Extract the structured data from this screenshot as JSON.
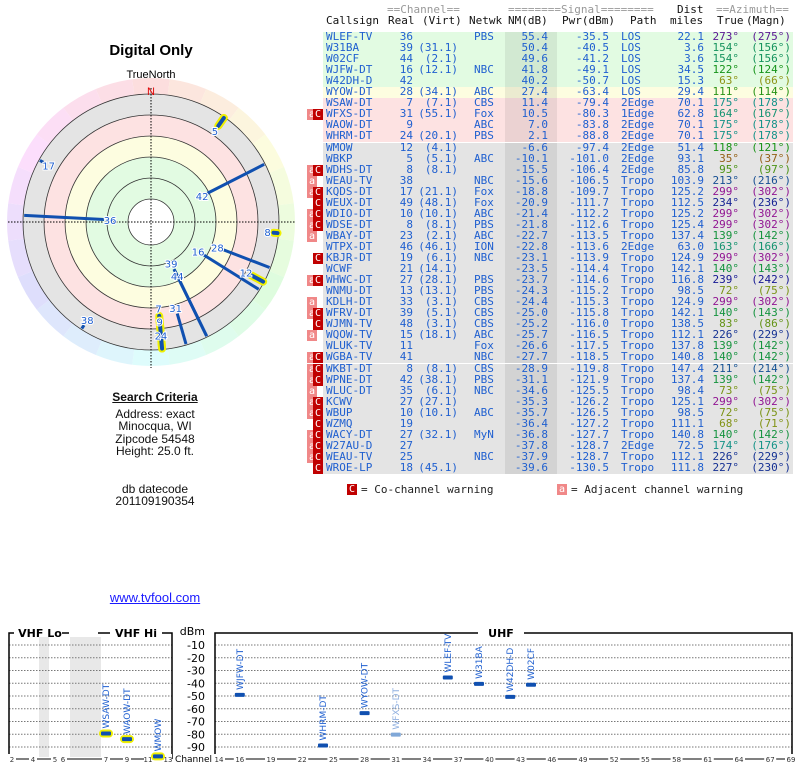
{
  "polar": {
    "title": "Digital Only",
    "north_ref": "TrueNorth",
    "north_label": "N"
  },
  "search_criteria": {
    "heading": "Search Criteria",
    "address": "Address: exact",
    "city": "Minocqua, WI",
    "zipcode": "Zipcode 54548",
    "height": "Height: 25.0 ft.",
    "db_label": "db datecode",
    "db_value": "201109190354"
  },
  "link": "www.tvfool.com",
  "table": {
    "group_headers": {
      "channel": "==Channel==",
      "signal": "========Signal========",
      "dist": "Dist",
      "azimuth": "==Azimuth=="
    },
    "columns": {
      "callsign": "Callsign",
      "real": "Real",
      "virt": "(Virt)",
      "netwk": "Netwk",
      "nm": "NM(dB)",
      "pwr": "Pwr(dBm)",
      "path": "Path",
      "miles": "miles",
      "true": "True",
      "magn": "(Magn)"
    },
    "rows": [
      {
        "call": "WLEF-TV",
        "real": "36",
        "virt": "",
        "net": "PBS",
        "nm": "55.4",
        "pwr": "-35.5",
        "path": "LOS",
        "dist": "22.1",
        "az_true": "273°",
        "az_magn": "(275°)",
        "flags": "",
        "zone": "green"
      },
      {
        "call": "W31BA",
        "real": "39",
        "virt": "(31.1)",
        "net": "",
        "nm": "50.4",
        "pwr": "-40.5",
        "path": "LOS",
        "dist": "3.6",
        "az_true": "154°",
        "az_magn": "(156°)",
        "flags": "",
        "zone": "green"
      },
      {
        "call": "W02CF",
        "real": "44",
        "virt": "(2.1)",
        "net": "",
        "nm": "49.6",
        "pwr": "-41.2",
        "path": "LOS",
        "dist": "3.6",
        "az_true": "154°",
        "az_magn": "(156°)",
        "flags": "",
        "zone": "green"
      },
      {
        "call": "WJFW-DT",
        "real": "16",
        "virt": "(12.1)",
        "net": "NBC",
        "nm": "41.8",
        "pwr": "-49.1",
        "path": "LOS",
        "dist": "34.5",
        "az_true": "122°",
        "az_magn": "(124°)",
        "flags": "",
        "zone": "green"
      },
      {
        "call": "W42DH-D",
        "real": "42",
        "virt": "",
        "net": "",
        "nm": "40.2",
        "pwr": "-50.7",
        "path": "LOS",
        "dist": "15.3",
        "az_true": "63°",
        "az_magn": "(66°)",
        "flags": "",
        "zone": "green"
      },
      {
        "call": "WYOW-DT",
        "real": "28",
        "virt": "(34.1)",
        "net": "ABC",
        "nm": "27.4",
        "pwr": "-63.4",
        "path": "LOS",
        "dist": "29.4",
        "az_true": "111°",
        "az_magn": "(114°)",
        "flags": "",
        "zone": "yellow"
      },
      {
        "call": "WSAW-DT",
        "real": "7",
        "virt": "(7.1)",
        "net": "CBS",
        "nm": "11.4",
        "pwr": "-79.4",
        "path": "2Edge",
        "dist": "70.1",
        "az_true": "175°",
        "az_magn": "(178°)",
        "flags": "",
        "zone": "pink"
      },
      {
        "call": "WFXS-DT",
        "real": "31",
        "virt": "(55.1)",
        "net": "Fox",
        "nm": "10.5",
        "pwr": "-80.3",
        "path": "1Edge",
        "dist": "62.8",
        "az_true": "164°",
        "az_magn": "(167°)",
        "flags": "aC",
        "zone": "pink"
      },
      {
        "call": "WAOW-DT",
        "real": "9",
        "virt": "",
        "net": "ABC",
        "nm": "7.0",
        "pwr": "-83.8",
        "path": "2Edge",
        "dist": "70.1",
        "az_true": "175°",
        "az_magn": "(178°)",
        "flags": "",
        "zone": "pink"
      },
      {
        "call": "WHRM-DT",
        "real": "24",
        "virt": "(20.1)",
        "net": "PBS",
        "nm": "2.1",
        "pwr": "-88.8",
        "path": "2Edge",
        "dist": "70.1",
        "az_true": "175°",
        "az_magn": "(178°)",
        "flags": "",
        "zone": "pink"
      },
      {
        "call": "WMOW",
        "real": "12",
        "virt": "(4.1)",
        "net": "",
        "nm": "-6.6",
        "pwr": "-97.4",
        "path": "2Edge",
        "dist": "51.4",
        "az_true": "118°",
        "az_magn": "(121°)",
        "flags": "",
        "zone": "gray"
      },
      {
        "call": "WBKP",
        "real": "5",
        "virt": "(5.1)",
        "net": "ABC",
        "nm": "-10.1",
        "pwr": "-101.0",
        "path": "2Edge",
        "dist": "93.1",
        "az_true": "35°",
        "az_magn": "(37°)",
        "flags": "",
        "zone": "gray"
      },
      {
        "call": "WDHS-DT",
        "real": "8",
        "virt": "(8.1)",
        "net": "",
        "nm": "-15.5",
        "pwr": "-106.4",
        "path": "2Edge",
        "dist": "85.8",
        "az_true": "95°",
        "az_magn": "(97°)",
        "flags": "aC",
        "zone": "gray"
      },
      {
        "call": "WEAU-TV",
        "real": "38",
        "virt": "",
        "net": "NBC",
        "nm": "-15.6",
        "pwr": "-106.5",
        "path": "Tropo",
        "dist": "103.9",
        "az_true": "213°",
        "az_magn": "(216°)",
        "flags": "a",
        "zone": "gray"
      },
      {
        "call": "KQDS-DT",
        "real": "17",
        "virt": "(21.1)",
        "net": "Fox",
        "nm": "-18.8",
        "pwr": "-109.7",
        "path": "Tropo",
        "dist": "125.2",
        "az_true": "299°",
        "az_magn": "(302°)",
        "flags": "aC",
        "zone": "gray"
      },
      {
        "call": "WEUX-DT",
        "real": "49",
        "virt": "(48.1)",
        "net": "Fox",
        "nm": "-20.9",
        "pwr": "-111.7",
        "path": "Tropo",
        "dist": "112.5",
        "az_true": "234°",
        "az_magn": "(236°)",
        "flags": "C",
        "zone": "gray"
      },
      {
        "call": "WDIO-DT",
        "real": "10",
        "virt": "(10.1)",
        "net": "ABC",
        "nm": "-21.4",
        "pwr": "-112.2",
        "path": "Tropo",
        "dist": "125.2",
        "az_true": "299°",
        "az_magn": "(302°)",
        "flags": "aC",
        "zone": "gray"
      },
      {
        "call": "WDSE-DT",
        "real": "8",
        "virt": "(8.1)",
        "net": "PBS",
        "nm": "-21.8",
        "pwr": "-112.6",
        "path": "Tropo",
        "dist": "125.4",
        "az_true": "299°",
        "az_magn": "(302°)",
        "flags": "aC",
        "zone": "gray"
      },
      {
        "call": "WBAY-DT",
        "real": "23",
        "virt": "(2.1)",
        "net": "ABC",
        "nm": "-22.7",
        "pwr": "-113.5",
        "path": "Tropo",
        "dist": "137.4",
        "az_true": "139°",
        "az_magn": "(142°)",
        "flags": "a",
        "zone": "gray"
      },
      {
        "call": "WTPX-DT",
        "real": "46",
        "virt": "(46.1)",
        "net": "ION",
        "nm": "-22.8",
        "pwr": "-113.6",
        "path": "2Edge",
        "dist": "63.0",
        "az_true": "163°",
        "az_magn": "(166°)",
        "flags": "",
        "zone": "gray"
      },
      {
        "call": "KBJR-DT",
        "real": "19",
        "virt": "(6.1)",
        "net": "NBC",
        "nm": "-23.1",
        "pwr": "-113.9",
        "path": "Tropo",
        "dist": "124.9",
        "az_true": "299°",
        "az_magn": "(302°)",
        "flags": "C",
        "zone": "gray"
      },
      {
        "call": "WCWF",
        "real": "21",
        "virt": "(14.1)",
        "net": "",
        "nm": "-23.5",
        "pwr": "-114.4",
        "path": "Tropo",
        "dist": "142.1",
        "az_true": "140°",
        "az_magn": "(143°)",
        "flags": "",
        "zone": "gray"
      },
      {
        "call": "WHWC-DT",
        "real": "27",
        "virt": "(28.1)",
        "net": "PBS",
        "nm": "-23.7",
        "pwr": "-114.6",
        "path": "Tropo",
        "dist": "116.8",
        "az_true": "239°",
        "az_magn": "(242°)",
        "flags": "aC",
        "zone": "gray"
      },
      {
        "call": "WNMU-DT",
        "real": "13",
        "virt": "(13.1)",
        "net": "PBS",
        "nm": "-24.3",
        "pwr": "-115.2",
        "path": "Tropo",
        "dist": "98.5",
        "az_true": "72°",
        "az_magn": "(75°)",
        "flags": "",
        "zone": "gray"
      },
      {
        "call": "KDLH-DT",
        "real": "33",
        "virt": "(3.1)",
        "net": "CBS",
        "nm": "-24.4",
        "pwr": "-115.3",
        "path": "Tropo",
        "dist": "124.9",
        "az_true": "299°",
        "az_magn": "(302°)",
        "flags": "a",
        "zone": "gray"
      },
      {
        "call": "WFRV-DT",
        "real": "39",
        "virt": "(5.1)",
        "net": "CBS",
        "nm": "-25.0",
        "pwr": "-115.8",
        "path": "Tropo",
        "dist": "142.1",
        "az_true": "140°",
        "az_magn": "(143°)",
        "flags": "aC",
        "zone": "gray"
      },
      {
        "call": "WJMN-TV",
        "real": "48",
        "virt": "(3.1)",
        "net": "CBS",
        "nm": "-25.2",
        "pwr": "-116.0",
        "path": "Tropo",
        "dist": "138.5",
        "az_true": "83°",
        "az_magn": "(86°)",
        "flags": "C",
        "zone": "gray"
      },
      {
        "call": "WQOW-TV",
        "real": "15",
        "virt": "(18.1)",
        "net": "ABC",
        "nm": "-25.7",
        "pwr": "-116.5",
        "path": "Tropo",
        "dist": "112.1",
        "az_true": "226°",
        "az_magn": "(229°)",
        "flags": "a",
        "zone": "gray"
      },
      {
        "call": "WLUK-TV",
        "real": "11",
        "virt": "",
        "net": "Fox",
        "nm": "-26.6",
        "pwr": "-117.5",
        "path": "Tropo",
        "dist": "137.8",
        "az_true": "139°",
        "az_magn": "(142°)",
        "flags": "",
        "zone": "gray"
      },
      {
        "call": "WGBA-TV",
        "real": "41",
        "virt": "",
        "net": "NBC",
        "nm": "-27.7",
        "pwr": "-118.5",
        "path": "Tropo",
        "dist": "140.8",
        "az_true": "140°",
        "az_magn": "(142°)",
        "flags": "aC",
        "zone": "gray"
      },
      {
        "call": "WKBT-DT",
        "real": "8",
        "virt": "(8.1)",
        "net": "CBS",
        "nm": "-28.9",
        "pwr": "-119.8",
        "path": "Tropo",
        "dist": "147.4",
        "az_true": "211°",
        "az_magn": "(214°)",
        "flags": "aC",
        "zone": "gray"
      },
      {
        "call": "WPNE-DT",
        "real": "42",
        "virt": "(38.1)",
        "net": "PBS",
        "nm": "-31.1",
        "pwr": "-121.9",
        "path": "Tropo",
        "dist": "137.4",
        "az_true": "139°",
        "az_magn": "(142°)",
        "flags": "aC",
        "zone": "gray"
      },
      {
        "call": "WLUC-DT",
        "real": "35",
        "virt": "(6.1)",
        "net": "NBC",
        "nm": "-34.6",
        "pwr": "-125.5",
        "path": "Tropo",
        "dist": "98.4",
        "az_true": "73°",
        "az_magn": "(75°)",
        "flags": "a",
        "zone": "gray"
      },
      {
        "call": "KCWV",
        "real": "27",
        "virt": "(27.1)",
        "net": "",
        "nm": "-35.3",
        "pwr": "-126.2",
        "path": "Tropo",
        "dist": "125.1",
        "az_true": "299°",
        "az_magn": "(302°)",
        "flags": "aC",
        "zone": "gray"
      },
      {
        "call": "WBUP",
        "real": "10",
        "virt": "(10.1)",
        "net": "ABC",
        "nm": "-35.7",
        "pwr": "-126.5",
        "path": "Tropo",
        "dist": "98.5",
        "az_true": "72°",
        "az_magn": "(75°)",
        "flags": "aC",
        "zone": "gray"
      },
      {
        "call": "WZMQ",
        "real": "19",
        "virt": "",
        "net": "",
        "nm": "-36.4",
        "pwr": "-127.2",
        "path": "Tropo",
        "dist": "111.1",
        "az_true": "68°",
        "az_magn": "(71°)",
        "flags": "C",
        "zone": "gray"
      },
      {
        "call": "WACY-DT",
        "real": "27",
        "virt": "(32.1)",
        "net": "MyN",
        "nm": "-36.8",
        "pwr": "-127.7",
        "path": "Tropo",
        "dist": "140.8",
        "az_true": "140°",
        "az_magn": "(142°)",
        "flags": "aC",
        "zone": "gray"
      },
      {
        "call": "W27AU-D",
        "real": "27",
        "virt": "",
        "net": "",
        "nm": "-37.8",
        "pwr": "-128.7",
        "path": "2Edge",
        "dist": "72.5",
        "az_true": "174°",
        "az_magn": "(176°)",
        "flags": "aC",
        "zone": "gray"
      },
      {
        "call": "WEAU-TV",
        "real": "25",
        "virt": "",
        "net": "NBC",
        "nm": "-37.9",
        "pwr": "-128.7",
        "path": "Tropo",
        "dist": "112.1",
        "az_true": "226°",
        "az_magn": "(229°)",
        "flags": "aC",
        "zone": "gray"
      },
      {
        "call": "WROE-LP",
        "real": "18",
        "virt": "(45.1)",
        "net": "",
        "nm": "-39.6",
        "pwr": "-130.5",
        "path": "Tropo",
        "dist": "111.8",
        "az_true": "227°",
        "az_magn": "(230°)",
        "flags": "C",
        "zone": "gray"
      }
    ],
    "legend": {
      "co_channel": "= Co-channel warning",
      "adjacent": "= Adjacent channel warning",
      "co_flag": "C",
      "adj_flag": "a"
    },
    "zone_colors": {
      "green": "#e2fbe2",
      "yellow": "#fdfde0",
      "pink": "#fde2e2",
      "gray": "#e4e4e4"
    }
  },
  "spectrum": {
    "vhf_lo_label": "VHF Lo",
    "vhf_hi_label": "VHF Hi",
    "uhf_label": "UHF",
    "unit_label": "dBm",
    "channel_label": "Channel",
    "db_ticks": [
      "-10",
      "-20",
      "-30",
      "-40",
      "-50",
      "-60",
      "-70",
      "-80",
      "-90"
    ],
    "vhf_channels": [
      "2",
      "4",
      "5",
      "6",
      "7",
      "9",
      "11",
      "13"
    ],
    "uhf_channels": [
      "14",
      "16",
      "19",
      "22",
      "25",
      "28",
      "31",
      "34",
      "37",
      "40",
      "43",
      "46",
      "49",
      "52",
      "55",
      "58",
      "61",
      "64",
      "67",
      "69"
    ],
    "stations": [
      {
        "call": "WSAW-DT",
        "channel": 7,
        "dbm": -79.4,
        "faded": false
      },
      {
        "call": "WAOW-DT",
        "channel": 9,
        "dbm": -83.8,
        "faded": false
      },
      {
        "call": "WMOW",
        "channel": 12,
        "dbm": -97.4,
        "faded": false
      },
      {
        "call": "WJFW-DT",
        "channel": 16,
        "dbm": -49.1,
        "faded": false
      },
      {
        "call": "WHRM-DT",
        "channel": 24,
        "dbm": -88.8,
        "faded": false
      },
      {
        "call": "WYOW-DT",
        "channel": 28,
        "dbm": -63.4,
        "faded": false
      },
      {
        "call": "WFXS-DT",
        "channel": 31,
        "dbm": -80.3,
        "faded": true
      },
      {
        "call": "WLEF-TV",
        "channel": 36,
        "dbm": -35.5,
        "faded": false
      },
      {
        "call": "W31BA",
        "channel": 39,
        "dbm": -40.5,
        "faded": false
      },
      {
        "call": "W42DH-D",
        "channel": 42,
        "dbm": -50.7,
        "faded": false
      },
      {
        "call": "W02CF",
        "channel": 44,
        "dbm": -41.2,
        "faded": false
      }
    ]
  }
}
